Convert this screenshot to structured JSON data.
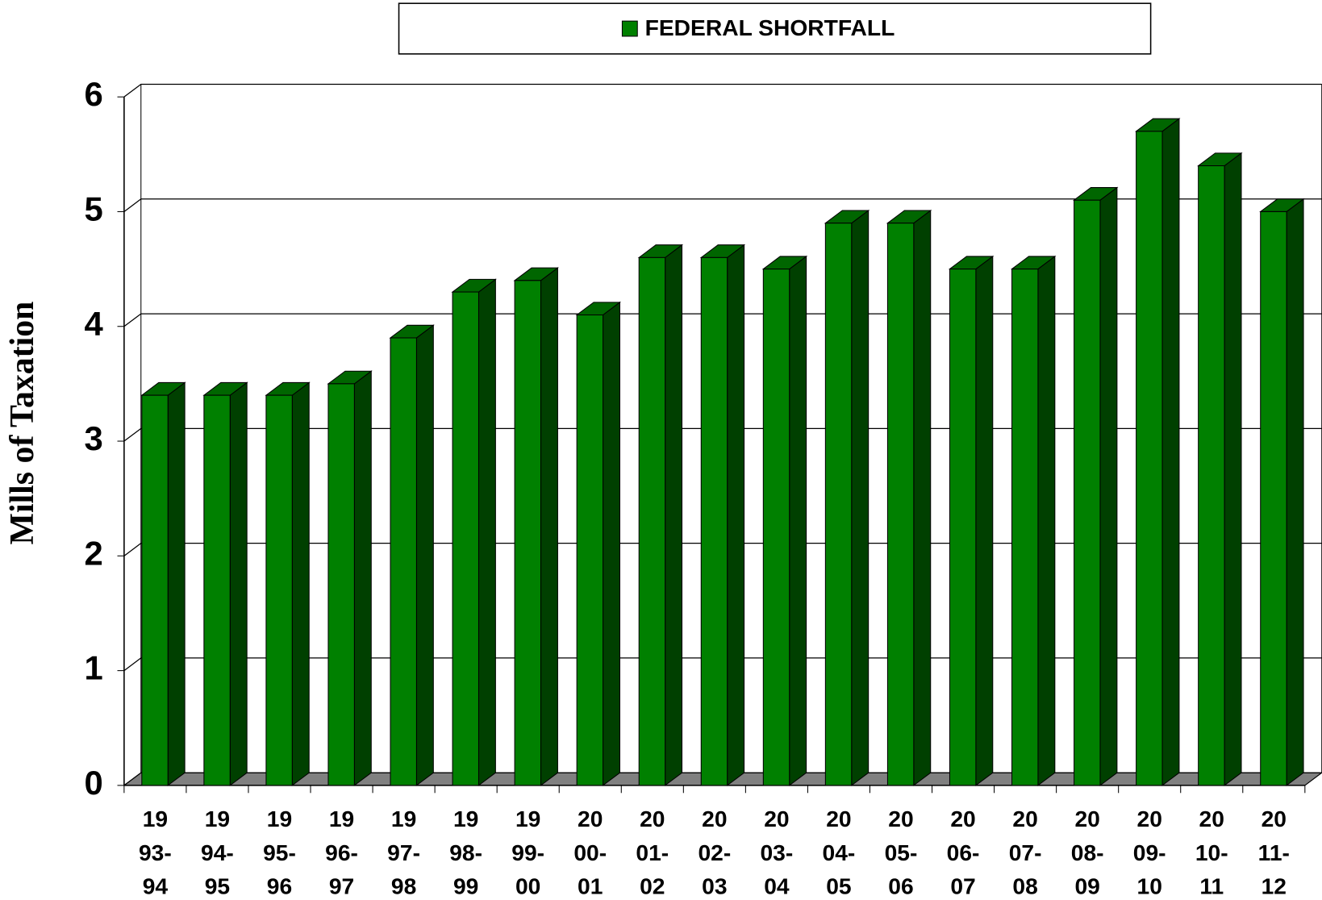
{
  "chart_data": {
    "type": "bar3d",
    "legend_title": "FEDERAL SHORTFALL",
    "y_label": "Mills of Taxation",
    "categories": [
      "19\n93-\n94",
      "19\n94-\n95",
      "19\n95-\n96",
      "19\n96-\n97",
      "19\n97-\n98",
      "19\n98-\n99",
      "19\n99-\n00",
      "20\n00-\n01",
      "20\n01-\n02",
      "20\n02-\n03",
      "20\n03-\n04",
      "20\n04-\n05",
      "20\n05-\n06",
      "20\n06-\n07",
      "20\n07-\n08",
      "20\n08-\n09",
      "20\n09-\n10",
      "20\n10-\n11",
      "20\n11-\n12"
    ],
    "values": [
      3.4,
      3.4,
      3.4,
      3.5,
      3.9,
      4.3,
      4.4,
      4.1,
      4.6,
      4.6,
      4.5,
      4.9,
      4.9,
      4.5,
      4.5,
      5.1,
      5.7,
      5.4,
      5.0
    ],
    "color": "#008000",
    "ylim": [
      0,
      6
    ],
    "yticks": [
      0,
      1,
      2,
      3,
      4,
      5,
      6
    ],
    "grid": true
  }
}
